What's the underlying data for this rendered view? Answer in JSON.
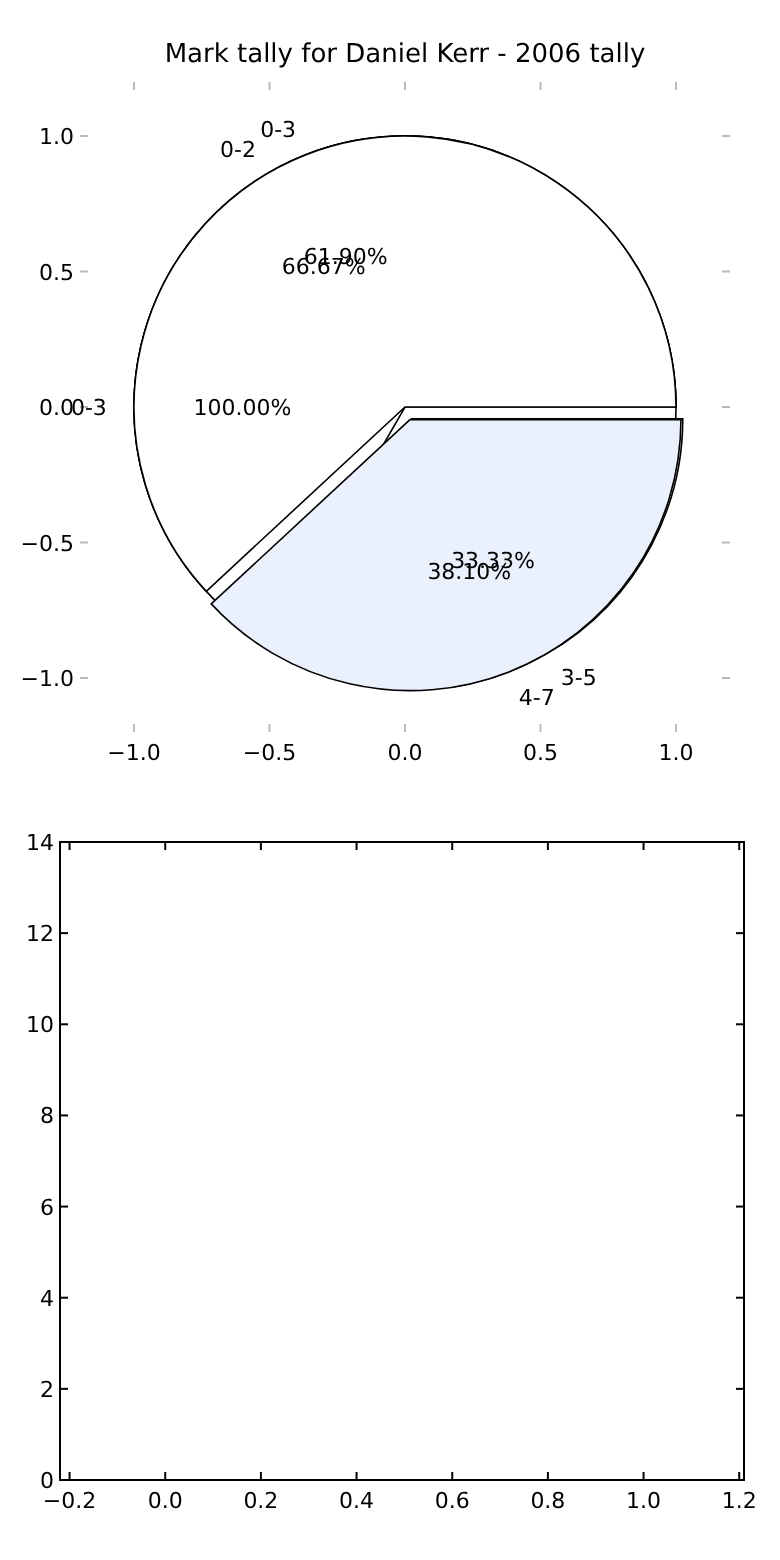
{
  "chart_data": [
    {
      "type": "scatter",
      "title": "Mark tally for Daniel Kerr - 2006 tally",
      "xlim": [
        -1,
        1
      ],
      "ylim": [
        -1,
        1
      ],
      "xticks": [
        {
          "value": -1,
          "label": "−1.0"
        },
        {
          "value": -0.5,
          "label": "−0.5"
        },
        {
          "value": 0,
          "label": "0.0"
        },
        {
          "value": 0.5,
          "label": "0.5"
        },
        {
          "value": 1,
          "label": "1.0"
        }
      ],
      "yticks": [
        {
          "value": -1,
          "label": "−1.0"
        },
        {
          "value": -0.5,
          "label": "−0.5"
        },
        {
          "value": 0,
          "label": "0.0"
        },
        {
          "value": 0.5,
          "label": "0.5"
        },
        {
          "value": 1,
          "label": "1.0"
        }
      ]
    },
    {
      "type": "pie",
      "categories": [
        "0-3"
      ],
      "values": [
        100
      ],
      "value_labels": [
        "100.00%"
      ],
      "colors": [
        "#ffffff"
      ]
    },
    {
      "type": "pie",
      "categories": [
        "0-2",
        "3-5"
      ],
      "values": [
        66.67,
        33.33
      ],
      "value_labels": [
        "66.67%",
        "33.33%"
      ],
      "colors": [
        "#ffffff",
        "#eaf0fc"
      ]
    },
    {
      "type": "pie",
      "categories": [
        "0-3",
        "4-7"
      ],
      "values": [
        61.9,
        38.1
      ],
      "value_labels": [
        "61.90%",
        "38.10%"
      ],
      "colors": [
        "#ffffff",
        "#eaf0fc"
      ]
    },
    {
      "type": "scatter",
      "xlim": [
        -0.22,
        1.21
      ],
      "ylim": [
        0,
        14
      ],
      "xticks": [
        {
          "value": -0.2,
          "label": "−0.2"
        },
        {
          "value": 0,
          "label": "0.0"
        },
        {
          "value": 0.2,
          "label": "0.2"
        },
        {
          "value": 0.4,
          "label": "0.4"
        },
        {
          "value": 0.6,
          "label": "0.6"
        },
        {
          "value": 0.8,
          "label": "0.8"
        },
        {
          "value": 1,
          "label": "1.0"
        },
        {
          "value": 1.2,
          "label": "1.2"
        }
      ],
      "yticks": [
        0,
        2,
        4,
        6,
        8,
        10,
        12,
        14
      ]
    }
  ]
}
